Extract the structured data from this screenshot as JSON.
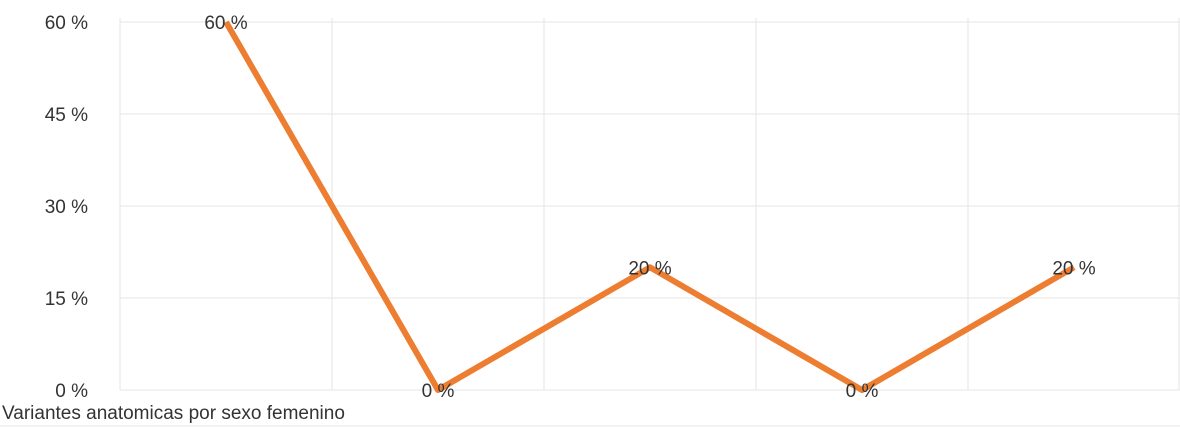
{
  "chart_data": {
    "type": "line",
    "title": "Variantes anatomicas por sexo femenino",
    "categories": [
      null,
      null,
      null,
      null,
      null
    ],
    "series": [
      {
        "name": null,
        "color": "#ed7d31",
        "values": [
          60,
          0,
          20,
          0,
          20
        ],
        "value_labels": [
          "60 %",
          "0 %",
          "20 %",
          "0 %",
          "20 %"
        ]
      }
    ],
    "ylim": [
      0,
      60
    ],
    "yticks": [
      {
        "value": 0,
        "label": "0 %"
      },
      {
        "value": 15,
        "label": "15 %"
      },
      {
        "value": 30,
        "label": "30 %"
      },
      {
        "value": 45,
        "label": "45 %"
      },
      {
        "value": 60,
        "label": "60 %"
      }
    ],
    "grid": true
  }
}
